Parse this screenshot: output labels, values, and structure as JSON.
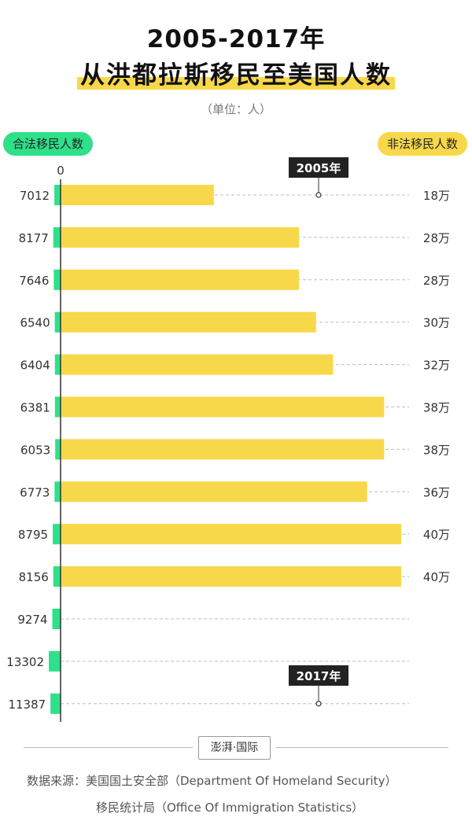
{
  "title_line1": "2005-2017年",
  "title_line2": "从洪都拉斯移民至美国人数",
  "unit_label": "（单位：人）",
  "legend": {
    "legal": "合法移民人数",
    "illegal": "非法移民人数"
  },
  "colors": {
    "legal": "#2ee08a",
    "illegal": "#f7d84a",
    "marker_bg": "#222222"
  },
  "chart_data": {
    "type": "bar",
    "axis_zero_label": "0",
    "years_shown": [
      "2005年",
      "2017年"
    ],
    "series": [
      {
        "name": "合法移民人数",
        "values": [
          7012,
          8177,
          7646,
          6540,
          6404,
          6381,
          6053,
          6773,
          8795,
          8156,
          9274,
          13302,
          11387
        ],
        "labels": [
          "7012",
          "8177",
          "7646",
          "6540",
          "6404",
          "6381",
          "6053",
          "6773",
          "8795",
          "8156",
          "9274",
          "13302",
          "11387"
        ]
      },
      {
        "name": "非法移民人数",
        "values": [
          180000,
          280000,
          280000,
          300000,
          320000,
          380000,
          380000,
          360000,
          400000,
          400000,
          null,
          null,
          null
        ],
        "labels": [
          "18万",
          "28万",
          "28万",
          "30万",
          "32万",
          "38万",
          "38万",
          "36万",
          "40万",
          "40万",
          "",
          "",
          ""
        ]
      }
    ]
  },
  "footer": {
    "logo_text": "澎湃·国际",
    "source_line1": "数据来源：美国国土安全部（Department Of Homeland Security）",
    "source_line2": "移民统计局（Office Of Immigration Statistics）"
  }
}
